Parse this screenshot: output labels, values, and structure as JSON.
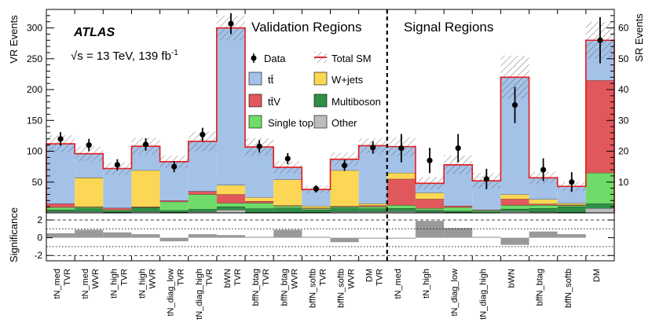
{
  "chart_data": {
    "type": "bar",
    "stacked": true,
    "title_atlas": "ATLAS",
    "energy_label": "√s = 13 TeV, 139 fb",
    "energy_sup": "-1",
    "vr_heading": "Validation Regions",
    "sr_heading": "Signal Regions",
    "ylabel_left": "VR Events",
    "ylabel_right": "SR Events",
    "ylabel_ratio": "Significance",
    "ylim_left": [
      0,
      330
    ],
    "ylim_right": [
      0,
      66
    ],
    "ylim_ratio": [
      -2.6,
      2.8
    ],
    "yticks_left": [
      50,
      100,
      150,
      200,
      250,
      300
    ],
    "yticks_right": [
      10,
      20,
      30,
      40,
      50,
      60
    ],
    "yticks_ratio": [
      -2,
      0,
      2
    ],
    "legend": {
      "data": "Data",
      "total": "Total SM",
      "ttbar": "tt̄",
      "wjets": "W+jets",
      "ttv": "tt̄V",
      "multiboson": "Multiboson",
      "singletop": "Single top",
      "other": "Other"
    },
    "colors": {
      "ttbar": "#a4c2e8",
      "wjets": "#fcd755",
      "ttv": "#e0585c",
      "multiboson": "#2f8f47",
      "singletop": "#6fdc6a",
      "other": "#bcbcbc",
      "total": "#e41a1c",
      "significance": "#999999"
    },
    "process_order": [
      "other",
      "multiboson",
      "singletop",
      "ttv",
      "wjets",
      "ttbar"
    ],
    "regions": [
      {
        "top": "tN_med",
        "bottom": "TVR",
        "type": "VR",
        "data": 120,
        "data_err": 11,
        "total": 112,
        "unc": 14,
        "comp": {
          "other": 2,
          "multiboson": 3,
          "singletop": 4,
          "ttv": 6,
          "wjets": 0,
          "ttbar": 97
        },
        "sig": 0.5
      },
      {
        "top": "tN_med",
        "bottom": "WVR",
        "type": "VR",
        "data": 110,
        "data_err": 10,
        "total": 96,
        "unc": 12,
        "comp": {
          "other": 2,
          "multiboson": 5,
          "singletop": 2,
          "ttv": 1,
          "wjets": 47,
          "ttbar": 39
        },
        "sig": 0.9
      },
      {
        "top": "tN_high",
        "bottom": "TVR",
        "type": "VR",
        "data": 78,
        "data_err": 9,
        "total": 72,
        "unc": 10,
        "comp": {
          "other": 1,
          "multiboson": 2,
          "singletop": 2,
          "ttv": 3,
          "wjets": 0,
          "ttbar": 64
        },
        "sig": 0.6
      },
      {
        "top": "tN_high",
        "bottom": "WVR",
        "type": "VR",
        "data": 111,
        "data_err": 10,
        "total": 108,
        "unc": 14,
        "comp": {
          "other": 2,
          "multiboson": 6,
          "singletop": 1,
          "ttv": 1,
          "wjets": 59,
          "ttbar": 39
        },
        "sig": 0.4
      },
      {
        "top": "tN_diag_low",
        "bottom": "TVR",
        "type": "VR",
        "data": 75,
        "data_err": 9,
        "total": 83,
        "unc": 10,
        "comp": {
          "other": 1,
          "multiboson": 3,
          "singletop": 14,
          "ttv": 2,
          "wjets": 0,
          "ttbar": 63
        },
        "sig": -0.4
      },
      {
        "top": "tN_diag_high",
        "bottom": "TVR",
        "type": "VR",
        "data": 127,
        "data_err": 11,
        "total": 116,
        "unc": 16,
        "comp": {
          "other": 2,
          "multiboson": 4,
          "singletop": 24,
          "ttv": 5,
          "wjets": 0,
          "ttbar": 81
        },
        "sig": 0.4
      },
      {
        "top": "bWN",
        "bottom": "TVR",
        "type": "VR",
        "data": 307,
        "data_err": 17,
        "total": 300,
        "unc": 20,
        "comp": {
          "other": 5,
          "multiboson": 5,
          "singletop": 6,
          "ttv": 14,
          "wjets": 15,
          "ttbar": 255
        },
        "sig": 0.3
      },
      {
        "top": "bffN_btag",
        "bottom": "TVR",
        "type": "VR",
        "data": 108,
        "data_err": 10,
        "total": 107,
        "unc": 14,
        "comp": {
          "other": 1,
          "multiboson": 6,
          "singletop": 9,
          "ttv": 3,
          "wjets": 6,
          "ttbar": 82
        },
        "sig": 0.1
      },
      {
        "top": "bffN_btag",
        "bottom": "WVR",
        "type": "VR",
        "data": 88,
        "data_err": 9,
        "total": 74,
        "unc": 10,
        "comp": {
          "other": 1,
          "multiboson": 7,
          "singletop": 3,
          "ttv": 1,
          "wjets": 42,
          "ttbar": 20
        },
        "sig": 0.9
      },
      {
        "top": "bffN_softb",
        "bottom": "TVR",
        "type": "VR",
        "data": 39,
        "data_err": 6,
        "total": 38,
        "unc": 6,
        "comp": {
          "other": 1,
          "multiboson": 4,
          "singletop": 2,
          "ttv": 1,
          "wjets": 3,
          "ttbar": 27
        },
        "sig": 0.1
      },
      {
        "top": "bffN_softb",
        "bottom": "WVR",
        "type": "VR",
        "data": 77,
        "data_err": 9,
        "total": 87,
        "unc": 11,
        "comp": {
          "other": 2,
          "multiboson": 6,
          "singletop": 2,
          "ttv": 1,
          "wjets": 58,
          "ttbar": 18
        },
        "sig": -0.5
      },
      {
        "top": "DM",
        "bottom": "TVR",
        "type": "VR",
        "data": 106,
        "data_err": 10,
        "total": 109,
        "unc": 12,
        "comp": {
          "other": 2,
          "multiboson": 5,
          "singletop": 3,
          "ttv": 2,
          "wjets": 3,
          "ttbar": 94
        },
        "sig": -0.1
      },
      {
        "top": "tN_med",
        "bottom": "",
        "type": "SR",
        "data": 21,
        "data_err": 4.6,
        "total": 21.5,
        "unc": 3,
        "comp": {
          "other": 0.5,
          "multiboson": 1,
          "singletop": 1,
          "ttv": 8.5,
          "wjets": 2,
          "ttbar": 8.5
        },
        "sig": -0.1
      },
      {
        "top": "tN_high",
        "bottom": "",
        "type": "SR",
        "data": 17,
        "data_err": 4.1,
        "total": 9.6,
        "unc": 2,
        "comp": {
          "other": 0.3,
          "multiboson": 0.6,
          "singletop": 0.6,
          "ttv": 3,
          "wjets": 2,
          "ttbar": 3.1
        },
        "sig": 1.9
      },
      {
        "top": "tN_diag_low",
        "bottom": "",
        "type": "SR",
        "data": 21,
        "data_err": 4.6,
        "total": 15.6,
        "unc": 3,
        "comp": {
          "other": 0.2,
          "multiboson": 0.4,
          "singletop": 1.2,
          "ttv": 0.5,
          "wjets": 0,
          "ttbar": 13.3
        },
        "sig": 1.1
      },
      {
        "top": "tN_diag_high",
        "bottom": "",
        "type": "SR",
        "data": 11,
        "data_err": 3.3,
        "total": 10.4,
        "unc": 2.5,
        "comp": {
          "other": 0.1,
          "multiboson": 0.3,
          "singletop": 0.4,
          "ttv": 0.2,
          "wjets": 0,
          "ttbar": 9.4
        },
        "sig": 0.1
      },
      {
        "top": "bWN",
        "bottom": "",
        "type": "SR",
        "data": 35,
        "data_err": 5.9,
        "total": 44,
        "unc": 7,
        "comp": {
          "other": 0.5,
          "multiboson": 0.8,
          "singletop": 1.2,
          "ttv": 2,
          "wjets": 1.5,
          "ttbar": 38
        },
        "sig": -0.8
      },
      {
        "top": "bffN_btag",
        "bottom": "",
        "type": "SR",
        "data": 14,
        "data_err": 3.7,
        "total": 11.4,
        "unc": 2,
        "comp": {
          "other": 0.3,
          "multiboson": 1.2,
          "singletop": 1,
          "ttv": 0.4,
          "wjets": 1.5,
          "ttbar": 7
        },
        "sig": 0.7
      },
      {
        "top": "bffN_softb",
        "bottom": "",
        "type": "SR",
        "data": 10,
        "data_err": 3.2,
        "total": 8.6,
        "unc": 1.5,
        "comp": {
          "other": 0.2,
          "multiboson": 1.8,
          "singletop": 0.4,
          "ttv": 0.2,
          "wjets": 0.5,
          "ttbar": 5.5
        },
        "sig": 0.4
      },
      {
        "top": "DM",
        "bottom": "",
        "type": "SR",
        "data": 56,
        "data_err": 7.5,
        "total": 56,
        "unc": 6,
        "comp": {
          "other": 1.5,
          "multiboson": 1.5,
          "singletop": 10,
          "ttv": 30,
          "wjets": 0,
          "ttbar": 13
        },
        "sig": 0.0
      }
    ]
  }
}
